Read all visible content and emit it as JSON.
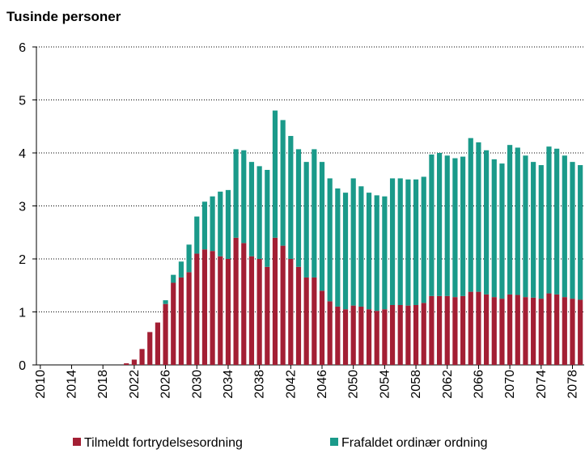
{
  "chart_data": {
    "type": "stacked_bar",
    "title": "Tusinde personer",
    "categories": [
      "2010",
      null,
      null,
      null,
      "2014",
      null,
      null,
      null,
      "2018",
      null,
      null,
      null,
      "2022",
      null,
      null,
      null,
      "2026",
      null,
      null,
      null,
      "2030",
      null,
      null,
      null,
      "2034",
      null,
      null,
      null,
      "2038",
      null,
      null,
      null,
      "2042",
      null,
      null,
      null,
      "2046",
      null,
      null,
      null,
      "2050",
      null,
      null,
      null,
      "2054",
      null,
      null,
      null,
      "2058",
      null,
      null,
      null,
      "2062",
      null,
      null,
      null,
      "2066",
      null,
      null,
      null,
      "2070",
      null,
      null,
      null,
      "2074",
      null,
      null,
      null,
      "2078",
      null
    ],
    "series": [
      {
        "name": "Tilmeldt fortrydelsesordning",
        "color": "#a31f34",
        "values": [
          0,
          0,
          0,
          0,
          0,
          0,
          0,
          0,
          0,
          0,
          0,
          0.03,
          0.1,
          0.3,
          0.62,
          0.8,
          1.15,
          1.55,
          1.65,
          1.75,
          2.1,
          2.18,
          2.15,
          2.05,
          2.0,
          2.4,
          2.3,
          2.05,
          2.0,
          1.85,
          2.4,
          2.25,
          2.0,
          1.85,
          1.65,
          1.65,
          1.4,
          1.2,
          1.1,
          1.05,
          1.12,
          1.1,
          1.05,
          1.02,
          1.05,
          1.13,
          1.13,
          1.12,
          1.13,
          1.17,
          1.3,
          1.3,
          1.3,
          1.28,
          1.3,
          1.38,
          1.38,
          1.33,
          1.28,
          1.25,
          1.33,
          1.32,
          1.28,
          1.27,
          1.25,
          1.35,
          1.33,
          1.28,
          1.25,
          1.23
        ]
      },
      {
        "name": "Frafaldet ordinær ordning",
        "color": "#1a9a8a",
        "values": [
          0,
          0,
          0,
          0,
          0,
          0,
          0,
          0,
          0,
          0,
          0,
          0,
          0,
          0,
          0,
          0,
          0.07,
          0.15,
          0.3,
          0.52,
          0.7,
          0.9,
          1.03,
          1.22,
          1.3,
          1.67,
          1.75,
          1.78,
          1.75,
          1.83,
          2.4,
          2.37,
          2.32,
          2.22,
          2.18,
          2.42,
          2.43,
          2.32,
          2.23,
          2.2,
          2.4,
          2.27,
          2.2,
          2.18,
          2.13,
          2.39,
          2.39,
          2.38,
          2.37,
          2.38,
          2.67,
          2.7,
          2.65,
          2.62,
          2.63,
          2.9,
          2.82,
          2.72,
          2.6,
          2.55,
          2.82,
          2.78,
          2.67,
          2.56,
          2.52,
          2.77,
          2.75,
          2.67,
          2.58,
          2.54
        ]
      }
    ],
    "ylim": [
      0,
      6
    ],
    "yticks": [
      0,
      1,
      2,
      3,
      4,
      5,
      6
    ],
    "grid": true
  }
}
